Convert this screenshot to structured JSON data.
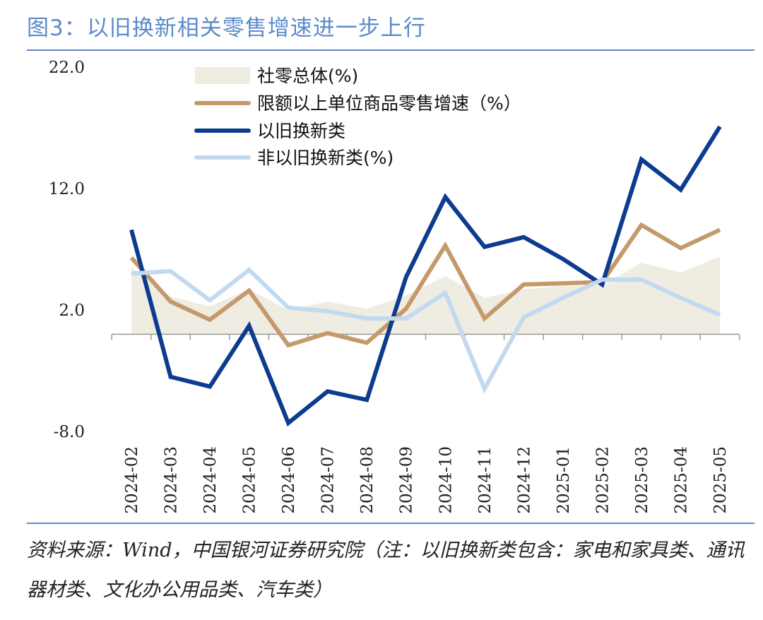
{
  "title": "图3：以旧换新相关零售增速进一步上行",
  "source": "资料来源：Wind，中国银河证券研究院（注：以旧换新类包含：家电和家具类、通讯器材类、文化办公用品类、汽车类）",
  "chart_data": {
    "type": "line",
    "title": "",
    "xlabel": "",
    "ylabel": "",
    "ylim": [
      -8.0,
      22.0
    ],
    "yticks": [
      "22.0",
      "12.0",
      "2.0",
      "-8.0"
    ],
    "categories": [
      "2024-02",
      "2024-03",
      "2024-04",
      "2024-05",
      "2024-06",
      "2024-07",
      "2024-08",
      "2024-09",
      "2024-10",
      "2024-11",
      "2024-12",
      "2025-01",
      "2025-02",
      "2025-03",
      "2025-04",
      "2025-05"
    ],
    "legend_position": "top-left",
    "grid": false,
    "series": [
      {
        "name": "社零总体(%)",
        "kind": "area",
        "color": "#efece2",
        "values": [
          5.5,
          3.1,
          2.3,
          3.7,
          2.0,
          2.7,
          2.1,
          3.2,
          4.8,
          3.0,
          3.7,
          4.0,
          4.0,
          5.9,
          5.1,
          6.4
        ]
      },
      {
        "name": "限额以上单位商品零售增速（%）",
        "kind": "line",
        "color": "#c49a6c",
        "values": [
          6.3,
          2.7,
          1.2,
          3.6,
          -0.9,
          0.1,
          -0.7,
          2.1,
          7.3,
          1.3,
          4.1,
          4.2,
          4.3,
          9.0,
          7.1,
          8.6
        ]
      },
      {
        "name": "以旧换新类",
        "kind": "line",
        "color": "#0d3b8f",
        "values": [
          8.6,
          -3.5,
          -4.3,
          0.7,
          -7.3,
          -4.7,
          -5.4,
          4.7,
          11.3,
          7.2,
          8.0,
          6.2,
          4.1,
          14.4,
          11.9,
          17.1
        ]
      },
      {
        "name": "非以旧换新类(%)",
        "kind": "line",
        "color": "#c3d9f0",
        "values": [
          5.0,
          5.2,
          2.8,
          5.3,
          2.2,
          1.9,
          1.3,
          1.3,
          3.4,
          -4.5,
          1.4,
          3.0,
          4.5,
          4.5,
          3.0,
          1.6
        ]
      }
    ]
  }
}
